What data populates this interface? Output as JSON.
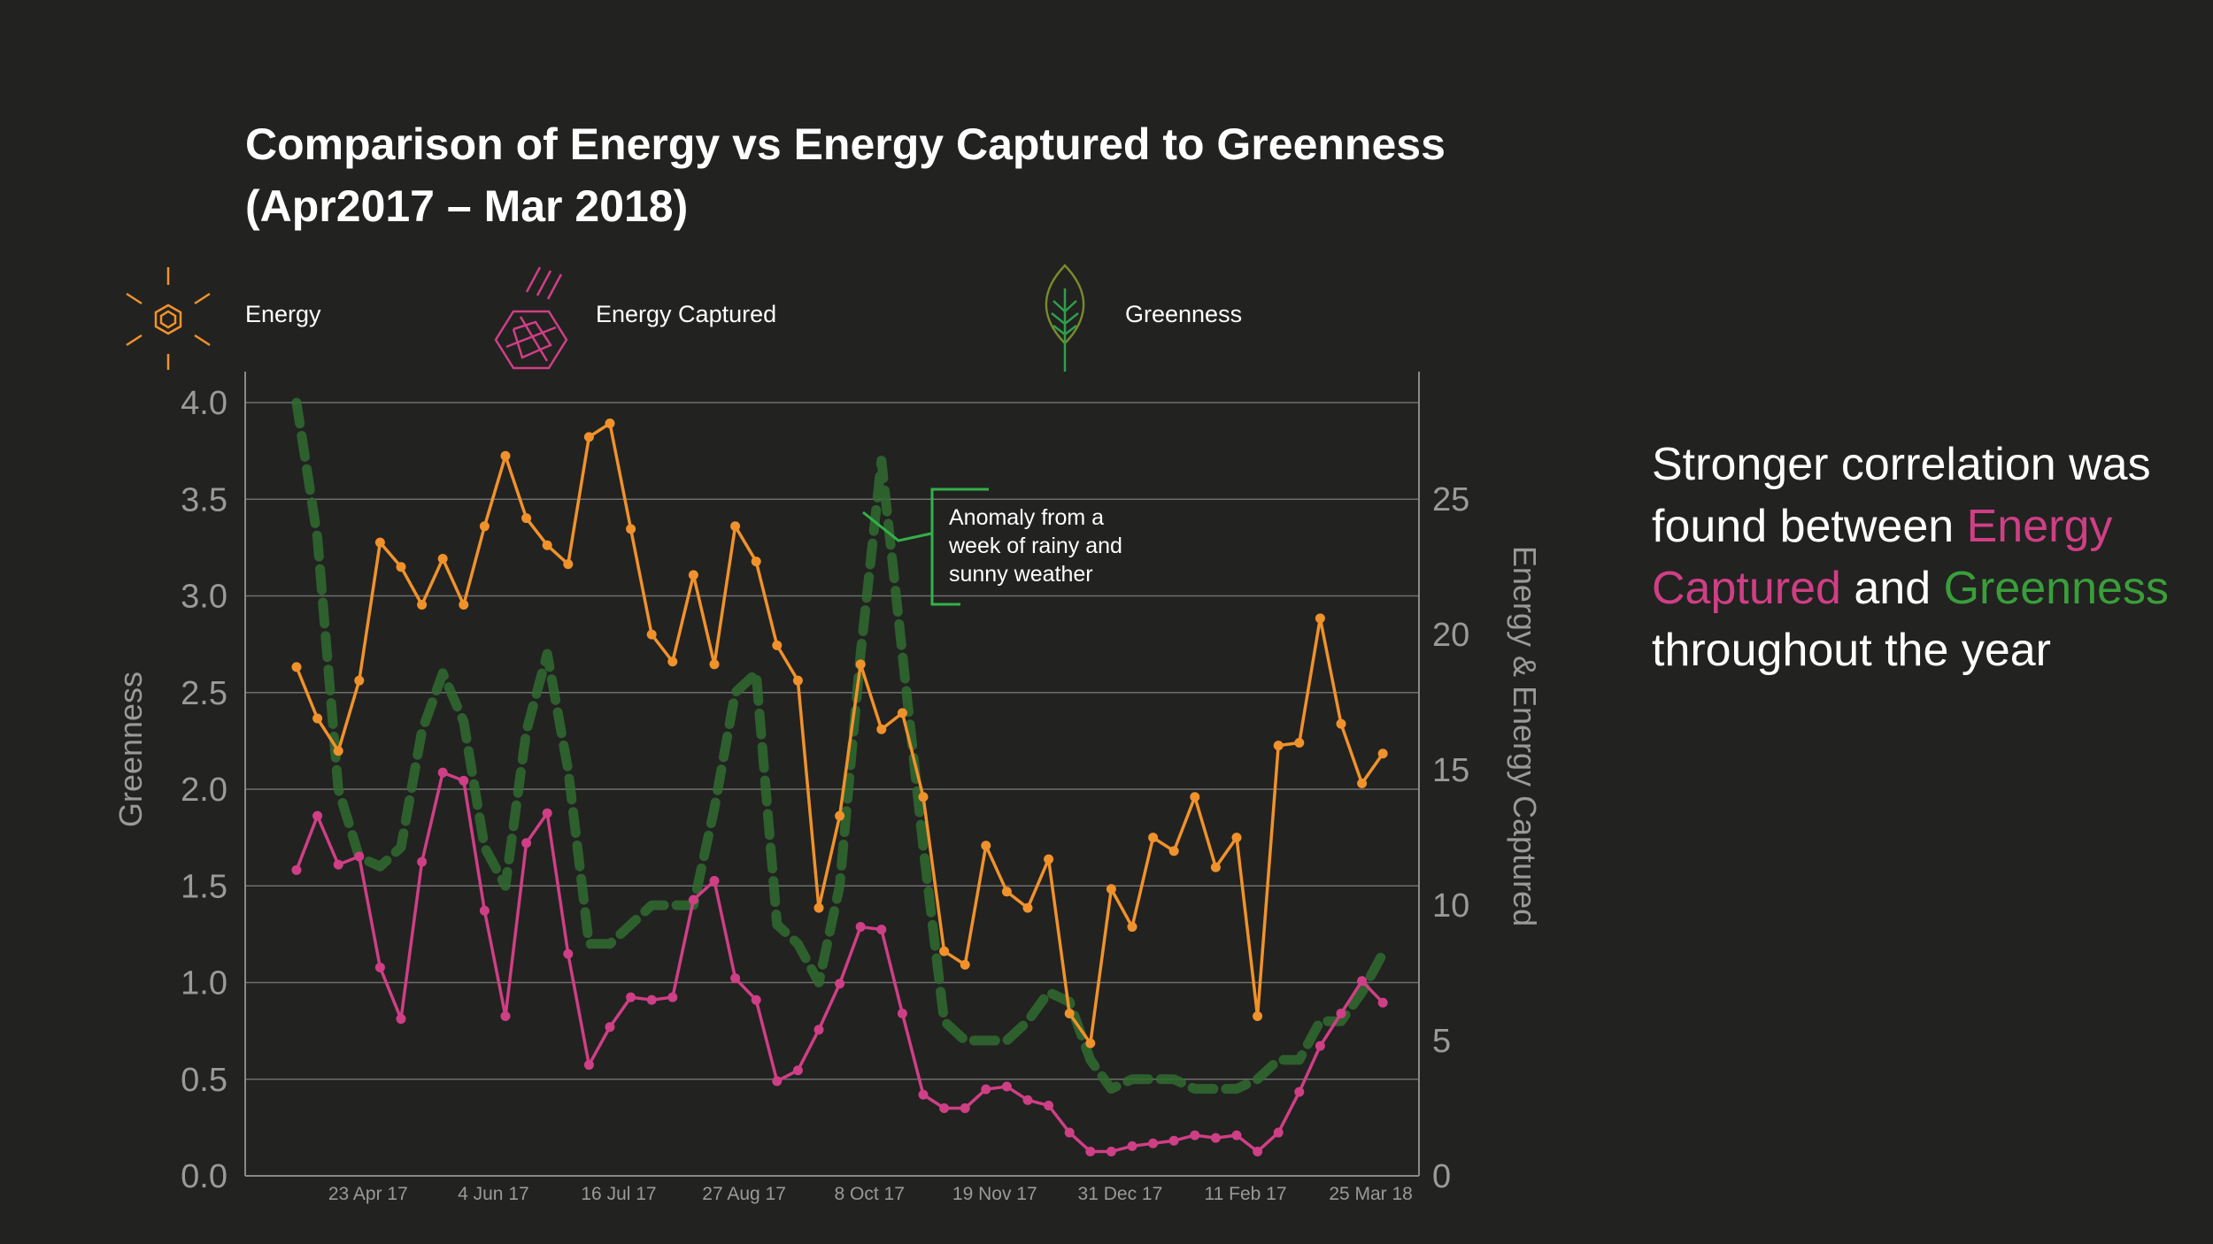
{
  "title_line1": "Comparison of Energy vs Energy Captured to Greenness",
  "title_line2": "(Apr2017 – Mar 2018)",
  "legend": [
    {
      "label": "Energy",
      "icon": "sun-hexagon-icon",
      "color": "#f0922b"
    },
    {
      "label": "Energy Captured",
      "icon": "crystal-hexagon-icon",
      "color": "#cf3f85"
    },
    {
      "label": "Greenness",
      "icon": "leaf-icon",
      "color": "#3a8a3a"
    }
  ],
  "annotation": {
    "line1": "Anomaly from a",
    "line2": "week of rainy and",
    "line3": "sunny weather"
  },
  "side_text": {
    "part1": "Stronger correlation was found between ",
    "highlight1": "Energy Captured",
    "part2": " and ",
    "highlight2": "Greenness",
    "part3": " throughout the year",
    "color1": "#cf3f85",
    "color2": "#3a9e3a"
  },
  "chart_data": {
    "type": "line",
    "title": "Comparison of Energy vs Energy Captured to Greenness (Apr2017 – Mar 2018)",
    "ylabel_left": "Greenness",
    "ylabel_right": "Energy & Energy Captured",
    "ylim_left": [
      0,
      4.0
    ],
    "ylim_right": [
      0,
      28.57
    ],
    "left_ticks": [
      "0.0",
      "0.5",
      "1.0",
      "1.5",
      "2.0",
      "2.5",
      "3.0",
      "3.5",
      "4.0"
    ],
    "right_ticks": [
      "0",
      "5",
      "10",
      "15",
      "20",
      "25"
    ],
    "x_tick_labels": [
      "23 Apr 17",
      "4 Jun 17",
      "16 Jul 17",
      "27 Aug 17",
      "8 Oct 17",
      "19 Nov 17",
      "31 Dec 17",
      "11 Feb 17",
      "25 Mar 18"
    ],
    "x_tick_index": [
      3,
      9,
      15,
      21,
      27,
      33,
      39,
      45,
      51
    ],
    "grid": true,
    "series": [
      {
        "name": "Energy",
        "axis": "right",
        "color": "#f0922b",
        "values": [
          18.8,
          16.9,
          15.7,
          18.3,
          23.4,
          22.5,
          21.1,
          22.8,
          21.1,
          24.0,
          26.6,
          24.3,
          23.3,
          22.6,
          27.3,
          27.8,
          23.9,
          20.0,
          19.0,
          22.2,
          18.9,
          24.0,
          22.7,
          19.6,
          18.3,
          9.9,
          13.3,
          18.9,
          16.5,
          17.1,
          14.0,
          8.3,
          7.8,
          12.2,
          10.5,
          9.9,
          11.7,
          6.0,
          4.9,
          10.6,
          9.2,
          12.5,
          12.0,
          14.0,
          11.4,
          12.5,
          5.9,
          15.9,
          16.0,
          20.6,
          16.7,
          14.5,
          15.6
        ]
      },
      {
        "name": "Energy Captured",
        "axis": "right",
        "color": "#cf3f85",
        "values": [
          11.3,
          13.3,
          11.5,
          11.8,
          7.7,
          5.8,
          11.6,
          14.9,
          14.6,
          9.8,
          5.9,
          12.3,
          13.4,
          8.2,
          4.1,
          5.5,
          6.6,
          6.5,
          6.6,
          10.2,
          10.9,
          7.3,
          6.5,
          3.5,
          3.9,
          5.4,
          7.1,
          9.2,
          9.1,
          6.0,
          3.0,
          2.5,
          2.5,
          3.2,
          3.3,
          2.8,
          2.6,
          1.6,
          0.9,
          0.9,
          1.1,
          1.2,
          1.3,
          1.5,
          1.4,
          1.5,
          0.9,
          1.6,
          3.1,
          4.8,
          6.0,
          7.2,
          6.4
        ]
      },
      {
        "name": "Greenness",
        "axis": "left",
        "color": "#2f6b2f",
        "style": "dashed",
        "values": [
          4.0,
          3.3,
          2.0,
          1.65,
          1.6,
          1.7,
          2.3,
          2.6,
          2.35,
          1.7,
          1.5,
          2.3,
          2.7,
          2.1,
          1.2,
          1.2,
          1.3,
          1.4,
          1.4,
          1.4,
          1.9,
          2.5,
          2.6,
          1.3,
          1.2,
          1.0,
          1.5,
          2.7,
          3.7,
          2.7,
          1.7,
          0.8,
          0.7,
          0.7,
          0.7,
          0.8,
          0.95,
          0.9,
          0.6,
          0.45,
          0.5,
          0.5,
          0.5,
          0.45,
          0.45,
          0.45,
          0.5,
          0.6,
          0.6,
          0.8,
          0.8,
          0.95,
          1.15
        ]
      }
    ],
    "annotations": [
      "Anomaly from a week of rainy and sunny weather"
    ]
  }
}
